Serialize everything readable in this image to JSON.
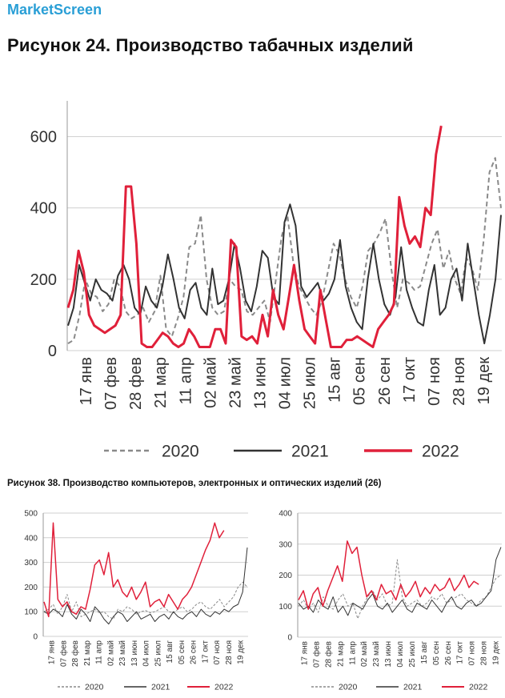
{
  "header": {
    "brand": "MarketScreen"
  },
  "figures": {
    "fig24_title": "Рисунок 24. Производство табачных изделий",
    "fig38_title": "Рисунок 38. Производство компьютеров, электронных и оптических изделий (26)"
  },
  "colors": {
    "s2020": "#8a8a8a",
    "s2021": "#333333",
    "s2022": "#e0203a",
    "grid": "#cfcfcf"
  },
  "chart_data": [
    {
      "id": "tobacco",
      "type": "line",
      "title": "Рисунок 24. Производство табачных изделий",
      "ylim": [
        0,
        700
      ],
      "yticks": [
        0,
        200,
        400,
        600
      ],
      "xlabels": [
        "17 янв",
        "07 фев",
        "28 фев",
        "21 мар",
        "11 апр",
        "02 май",
        "23 май",
        "13 июн",
        "04 июл",
        "25 июл",
        "15 авг",
        "05 сен",
        "26 сен",
        "17 окт",
        "07 ноя",
        "28 ноя",
        "19 дек"
      ],
      "legend": [
        "2020",
        "2021",
        "2022"
      ],
      "series": [
        {
          "name": "2020",
          "style": "dashed",
          "values": [
            20,
            30,
            100,
            200,
            160,
            150,
            110,
            130,
            200,
            180,
            110,
            90,
            100,
            120,
            80,
            110,
            210,
            60,
            40,
            90,
            150,
            290,
            300,
            380,
            200,
            120,
            100,
            110,
            200,
            180,
            170,
            110,
            100,
            120,
            140,
            80,
            200,
            320,
            380,
            250,
            180,
            150,
            120,
            100,
            140,
            220,
            300,
            270,
            200,
            150,
            120,
            180,
            280,
            300,
            330,
            370,
            230,
            120,
            200,
            190,
            170,
            180,
            240,
            300,
            340,
            230,
            280,
            200,
            160,
            260,
            230,
            170,
            310,
            500,
            540,
            400
          ]
        },
        {
          "name": "2021",
          "style": "solid",
          "values": [
            70,
            120,
            240,
            190,
            140,
            200,
            170,
            160,
            140,
            210,
            240,
            200,
            120,
            100,
            180,
            140,
            120,
            180,
            270,
            200,
            120,
            90,
            170,
            190,
            120,
            100,
            230,
            130,
            140,
            200,
            300,
            230,
            140,
            110,
            180,
            280,
            260,
            150,
            130,
            360,
            410,
            350,
            180,
            150,
            170,
            190,
            140,
            160,
            200,
            310,
            180,
            120,
            80,
            60,
            200,
            300,
            200,
            130,
            100,
            150,
            290,
            170,
            120,
            80,
            70,
            170,
            240,
            100,
            120,
            200,
            230,
            140,
            300,
            200,
            100,
            20,
            100,
            200,
            380
          ]
        },
        {
          "name": "2022",
          "style": "solid",
          "values": [
            120,
            170,
            280,
            220,
            100,
            70,
            60,
            50,
            60,
            70,
            100,
            460,
            460,
            300,
            20,
            10,
            10,
            30,
            50,
            40,
            20,
            10,
            20,
            60,
            40,
            10,
            10,
            10,
            60,
            60,
            20,
            310,
            290,
            40,
            30,
            40,
            20,
            100,
            40,
            170,
            100,
            60,
            150,
            240,
            140,
            60,
            40,
            20,
            170,
            90,
            10,
            10,
            10,
            30,
            30,
            40,
            30,
            20,
            10,
            60,
            80,
            100,
            130,
            430,
            350,
            300,
            320,
            290,
            400,
            380,
            550,
            630
          ]
        }
      ]
    },
    {
      "id": "computers",
      "type": "line",
      "title": "Рисунок 38. Производство компьютеров, электронных и оптических изделий (26)",
      "ylim": [
        0,
        500
      ],
      "yticks": [
        0,
        100,
        200,
        300,
        400,
        500
      ],
      "xlabels": [
        "17 янв",
        "07 фев",
        "28 фев",
        "21 мар",
        "11 апр",
        "02 май",
        "23 май",
        "13 июн",
        "04 июл",
        "25 июл",
        "15 авг",
        "05 сен",
        "26 сен",
        "17 окт",
        "07 ноя",
        "28 ноя",
        "19 дек"
      ],
      "legend": [
        "2020",
        "2021",
        "2022"
      ],
      "series": [
        {
          "name": "2020",
          "style": "dashed",
          "values": [
            100,
            110,
            130,
            90,
            120,
            170,
            100,
            140,
            80,
            90,
            100,
            110,
            95,
            100,
            80,
            70,
            110,
            100,
            120,
            110,
            90,
            100,
            105,
            95,
            100,
            110,
            120,
            100,
            95,
            110,
            120,
            100,
            110,
            130,
            140,
            120,
            110,
            130,
            150,
            120,
            140,
            160,
            200,
            220,
            200
          ]
        },
        {
          "name": "2021",
          "style": "solid",
          "values": [
            100,
            90,
            110,
            100,
            80,
            130,
            90,
            70,
            110,
            90,
            60,
            120,
            100,
            70,
            50,
            80,
            100,
            90,
            60,
            80,
            100,
            70,
            80,
            90,
            60,
            80,
            90,
            70,
            100,
            80,
            70,
            90,
            100,
            80,
            110,
            90,
            80,
            100,
            90,
            110,
            100,
            120,
            130,
            180,
            360
          ]
        },
        {
          "name": "2022",
          "style": "solid",
          "values": [
            140,
            80,
            460,
            150,
            120,
            140,
            100,
            90,
            120,
            110,
            190,
            290,
            310,
            250,
            340,
            200,
            230,
            180,
            160,
            200,
            150,
            180,
            220,
            120,
            140,
            150,
            120,
            170,
            140,
            110,
            150,
            170,
            200,
            250,
            300,
            350,
            390,
            460,
            400,
            430
          ]
        }
      ]
    },
    {
      "id": "computers_seasonally_adjusted",
      "type": "line",
      "ylim": [
        0,
        400
      ],
      "yticks": [
        0,
        100,
        200,
        300,
        400
      ],
      "xlabels": [
        "17 янв",
        "07 фев",
        "28 фев",
        "21 мар",
        "11 апр",
        "02 май",
        "23 май",
        "13 июн",
        "04 июл",
        "25 июл",
        "15 авг",
        "05 сен",
        "26 сен",
        "17 окт",
        "07 ноя",
        "28 ноя",
        "19 дек"
      ],
      "legend": [
        "2020",
        "2021",
        "2022"
      ],
      "series": [
        {
          "name": "2020",
          "style": "dashed",
          "values": [
            100,
            120,
            90,
            110,
            80,
            130,
            100,
            90,
            120,
            140,
            100,
            110,
            60,
            100,
            130,
            150,
            120,
            140,
            100,
            110,
            250,
            130,
            100,
            110,
            120,
            100,
            110,
            130,
            120,
            140,
            110,
            120,
            130,
            140,
            120,
            110,
            100,
            120,
            130,
            160,
            190,
            200
          ]
        },
        {
          "name": "2021",
          "style": "solid",
          "values": [
            110,
            90,
            100,
            80,
            120,
            100,
            90,
            130,
            80,
            100,
            70,
            110,
            100,
            90,
            120,
            140,
            100,
            90,
            110,
            80,
            100,
            120,
            90,
            80,
            110,
            100,
            90,
            120,
            100,
            80,
            110,
            130,
            100,
            90,
            110,
            120,
            100,
            110,
            130,
            150,
            250,
            290
          ]
        },
        {
          "name": "2022",
          "style": "solid",
          "values": [
            120,
            150,
            90,
            140,
            160,
            100,
            150,
            190,
            230,
            180,
            310,
            270,
            290,
            200,
            130,
            150,
            120,
            170,
            140,
            150,
            120,
            170,
            130,
            150,
            180,
            130,
            160,
            140,
            170,
            150,
            160,
            190,
            150,
            170,
            200,
            160,
            180,
            170
          ]
        }
      ]
    }
  ]
}
